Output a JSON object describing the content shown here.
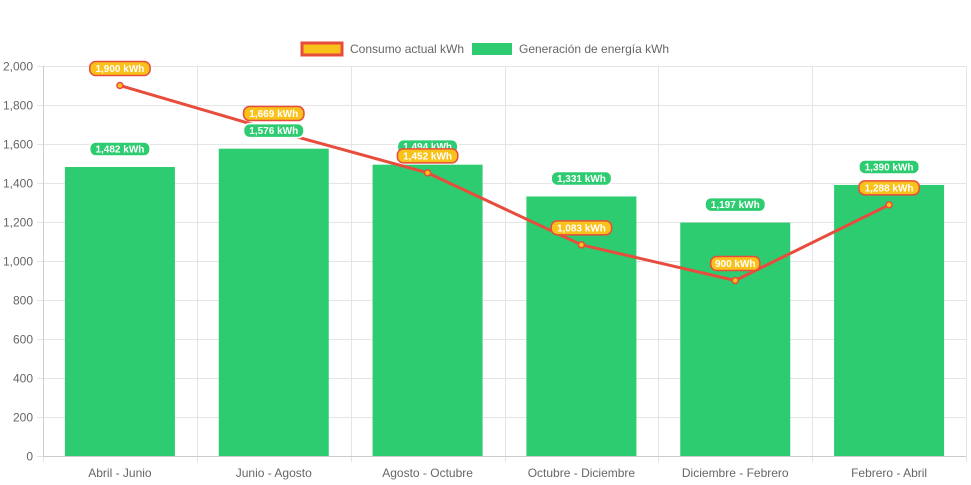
{
  "chart_data": {
    "type": "bar",
    "categories": [
      "Abril - Junio",
      "Junio - Agosto",
      "Agosto - Octubre",
      "Octubre - Diciembre",
      "Diciembre - Febrero",
      "Febrero - Abril"
    ],
    "series": [
      {
        "name": "Consumo actual kWh",
        "type": "line",
        "values": [
          1900,
          1669,
          1452,
          1083,
          900,
          1288
        ],
        "labels": [
          "1,900 kWh",
          "1,669 kWh",
          "1,452 kWh",
          "1,083 kWh",
          "900 kWh",
          "1,288 kWh"
        ],
        "color": "#e74c3c",
        "fill": "#f9c21a"
      },
      {
        "name": "Generación de energía kWh",
        "type": "bar",
        "values": [
          1482,
          1576,
          1494,
          1331,
          1197,
          1390
        ],
        "labels": [
          "1,482 kWh",
          "1,576 kWh",
          "1,494 kWh",
          "1,331 kWh",
          "1,197 kWh",
          "1,390 kWh"
        ],
        "color": "#2ecc71"
      }
    ],
    "ylim": [
      0,
      2000
    ],
    "yticks": [
      0,
      200,
      400,
      600,
      800,
      1000,
      1200,
      1400,
      1600,
      1800,
      2000
    ],
    "ytick_labels": [
      "0",
      "200",
      "400",
      "600",
      "800",
      "1,000",
      "1,200",
      "1,400",
      "1,600",
      "1,800",
      "2,000"
    ],
    "legend_position": "top",
    "grid": true
  }
}
